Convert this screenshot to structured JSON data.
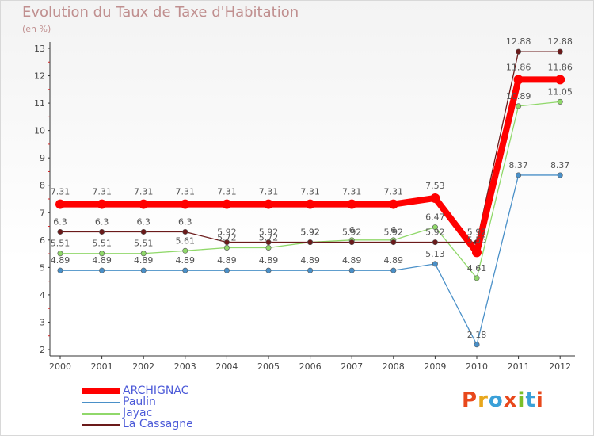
{
  "header": {
    "title": "Evolution du Taux de Taxe d'Habitation",
    "subtitle": "(en %)"
  },
  "logo": {
    "text": "Proxiti",
    "letters": [
      "P",
      "r",
      "o",
      "x",
      "i",
      "t",
      "i"
    ]
  },
  "colors": {
    "ARCHIGNAC": "#ff0000",
    "Paulin": "#4a90c8",
    "Jayac": "#90d86a",
    "La Cassagne": "#6b1a1a",
    "logo": [
      "#e8481c",
      "#e8a71c",
      "#3aa0d8",
      "#e8481c",
      "#7abf2a",
      "#3aa0d8",
      "#e8481c"
    ]
  },
  "chart_data": {
    "type": "line",
    "title": "Evolution du Taux de Taxe d'Habitation",
    "ylabel": "(en %)",
    "xlabel": "",
    "x": [
      "2000",
      "2001",
      "2002",
      "2003",
      "2004",
      "2005",
      "2006",
      "2007",
      "2008",
      "2009",
      "2010",
      "2011",
      "2012"
    ],
    "ylim": [
      2,
      13
    ],
    "yticks": [
      "2",
      "3",
      "4",
      "5",
      "6",
      "7",
      "8",
      "9",
      "10",
      "11",
      "12",
      "13"
    ],
    "grid": false,
    "legend": "bottom-left",
    "series": [
      {
        "name": "ARCHIGNAC",
        "values": [
          7.31,
          7.31,
          7.31,
          7.31,
          7.31,
          7.31,
          7.31,
          7.31,
          7.31,
          7.53,
          5.55,
          11.86,
          11.86
        ],
        "labels": [
          "7.31",
          "7.31",
          "7.31",
          "7.31",
          "7.31",
          "7.31",
          "7.31",
          "7.31",
          "7.31",
          "7.53",
          "5.55",
          "11.86",
          "11.86"
        ]
      },
      {
        "name": "Paulin",
        "values": [
          4.89,
          4.89,
          4.89,
          4.89,
          4.89,
          4.89,
          4.89,
          4.89,
          4.89,
          5.13,
          2.18,
          8.37,
          8.37
        ],
        "labels": [
          "4.89",
          "4.89",
          "4.89",
          "4.89",
          "4.89",
          "4.89",
          "4.89",
          "4.89",
          "4.89",
          "5.13",
          "2.18",
          "8.37",
          "8.37"
        ]
      },
      {
        "name": "Jayac",
        "values": [
          5.51,
          5.51,
          5.51,
          5.61,
          5.72,
          5.72,
          5.92,
          6,
          6,
          6.47,
          4.61,
          10.89,
          11.05
        ],
        "labels": [
          "5.51",
          "5.51",
          "5.51",
          "5.61",
          "5.72",
          "5.72",
          "5.92",
          "6",
          "6",
          "6.47",
          "4.61",
          "10.89",
          "11.05"
        ]
      },
      {
        "name": "La Cassagne",
        "values": [
          6.3,
          6.3,
          6.3,
          6.3,
          5.92,
          5.92,
          5.92,
          5.92,
          5.92,
          5.92,
          5.92,
          12.88,
          12.88
        ],
        "labels": [
          "6.3",
          "6.3",
          "6.3",
          "6.3",
          "5.92",
          "5.92",
          "5.92",
          "5.92",
          "5.92",
          "5.92",
          "5.92",
          "12.88",
          "12.88"
        ]
      }
    ]
  }
}
